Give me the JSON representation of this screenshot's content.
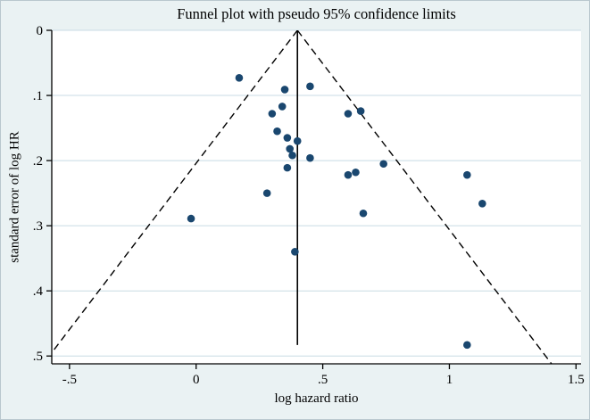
{
  "chart_data": {
    "type": "scatter",
    "title": "Funnel plot with pseudo 95% confidence limits",
    "xlabel": "log hazard ratio",
    "ylabel": "standard error of log HR",
    "xlim": [
      -0.57,
      1.52
    ],
    "ylim": [
      0,
      0.512
    ],
    "y_inverted": true,
    "grid": "horizontal",
    "x_ticks": [
      -0.5,
      0,
      0.5,
      1,
      1.5
    ],
    "x_tick_labels": [
      "-.5",
      "0",
      ".5",
      "1",
      "1.5"
    ],
    "y_ticks": [
      0,
      0.1,
      0.2,
      0.3,
      0.4,
      0.5
    ],
    "y_tick_labels": [
      "0",
      ".1",
      ".2",
      ".3",
      ".4",
      ".5"
    ],
    "pooled_estimate_line": {
      "x": 0.4,
      "y_from": 0,
      "y_to": 0.483,
      "style": "solid"
    },
    "funnel_limits": {
      "apex_x": 0.4,
      "apex_y": 0,
      "slope": 1.96,
      "style": "dashed"
    },
    "points": [
      [
        0.17,
        0.073
      ],
      [
        0.35,
        0.091
      ],
      [
        0.45,
        0.086
      ],
      [
        0.3,
        0.128
      ],
      [
        0.34,
        0.117
      ],
      [
        0.6,
        0.128
      ],
      [
        0.65,
        0.124
      ],
      [
        0.32,
        0.155
      ],
      [
        0.36,
        0.165
      ],
      [
        0.4,
        0.17
      ],
      [
        0.37,
        0.182
      ],
      [
        0.38,
        0.192
      ],
      [
        0.45,
        0.196
      ],
      [
        0.36,
        0.211
      ],
      [
        0.6,
        0.222
      ],
      [
        0.63,
        0.218
      ],
      [
        0.74,
        0.205
      ],
      [
        1.07,
        0.222
      ],
      [
        0.28,
        0.25
      ],
      [
        1.13,
        0.266
      ],
      [
        0.66,
        0.281
      ],
      [
        -0.02,
        0.289
      ],
      [
        0.39,
        0.34
      ],
      [
        1.07,
        0.483
      ]
    ],
    "colors": {
      "dot": "#1a476f",
      "line": "#000000",
      "grid": "#c8dbe4",
      "background": "#eaf2f3",
      "plot_background": "#ffffff",
      "axis": "#000000"
    }
  }
}
